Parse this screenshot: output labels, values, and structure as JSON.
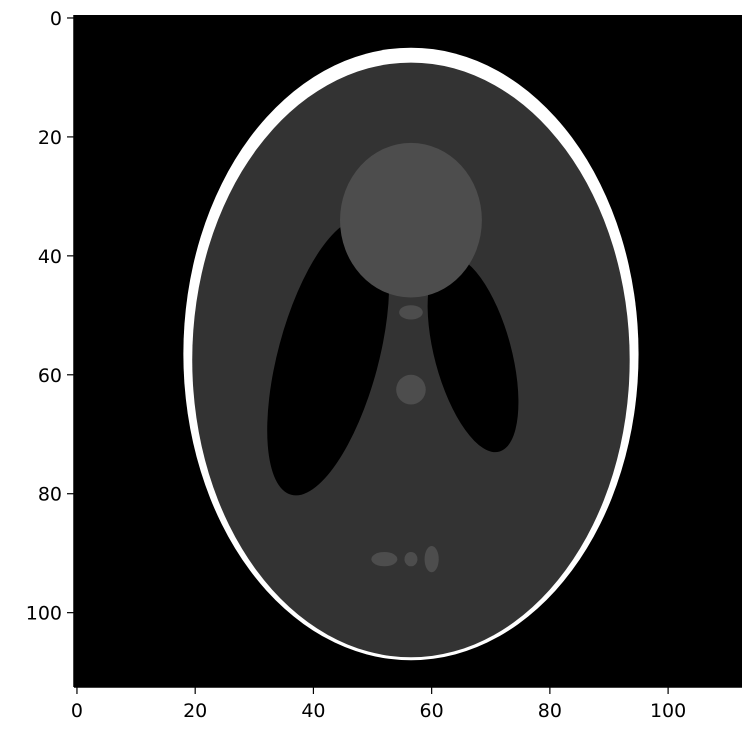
{
  "chart_data": {
    "type": "heatmap",
    "title": "",
    "xlabel": "",
    "ylabel": "",
    "image": "Shepp-Logan phantom",
    "colormap": "gray",
    "grid": false,
    "xlim": [
      -0.5,
      112.5
    ],
    "ylim": [
      112.5,
      -0.5
    ],
    "x_ticks": [
      0,
      20,
      40,
      60,
      80,
      100
    ],
    "y_ticks": [
      0,
      20,
      40,
      60,
      80,
      100
    ],
    "x_tick_labels": [
      "0",
      "20",
      "40",
      "60",
      "80",
      "100"
    ],
    "y_tick_labels": [
      "0",
      "20",
      "40",
      "60",
      "80",
      "100"
    ],
    "ellipses": [
      {
        "name": "skull-outer",
        "cx": 56.5,
        "cy": 56.5,
        "rx": 38.5,
        "ry": 51.5,
        "intensity": 1.0
      },
      {
        "name": "brain",
        "cx": 56.5,
        "cy": 57.5,
        "rx": 37.0,
        "ry": 50.0,
        "intensity": 0.2
      },
      {
        "name": "right-ventricle",
        "cx": 67.0,
        "cy": 56.5,
        "rx": 6.5,
        "ry": 17.0,
        "rotation_deg": -15,
        "intensity": 0.0
      },
      {
        "name": "left-ventricle",
        "cx": 42.5,
        "cy": 57.0,
        "rx": 8.5,
        "ry": 24.0,
        "rotation_deg": 15,
        "intensity": 0.0
      },
      {
        "name": "top-blob",
        "cx": 56.5,
        "cy": 34.0,
        "rx": 12.0,
        "ry": 13.0,
        "intensity": 0.3
      },
      {
        "name": "center-dot",
        "cx": 56.5,
        "cy": 62.5,
        "rx": 2.5,
        "ry": 2.5,
        "intensity": 0.3
      },
      {
        "name": "upper-dot",
        "cx": 56.5,
        "cy": 49.5,
        "rx": 2.0,
        "ry": 1.2,
        "intensity": 0.3
      },
      {
        "name": "bottom-dot-1",
        "cx": 52.0,
        "cy": 91.0,
        "rx": 2.2,
        "ry": 1.2,
        "intensity": 0.3
      },
      {
        "name": "bottom-dot-2",
        "cx": 56.5,
        "cy": 91.0,
        "rx": 1.1,
        "ry": 1.2,
        "intensity": 0.3
      },
      {
        "name": "bottom-dot-3",
        "cx": 60.0,
        "cy": 91.0,
        "rx": 1.2,
        "ry": 2.2,
        "intensity": 0.3
      }
    ]
  }
}
